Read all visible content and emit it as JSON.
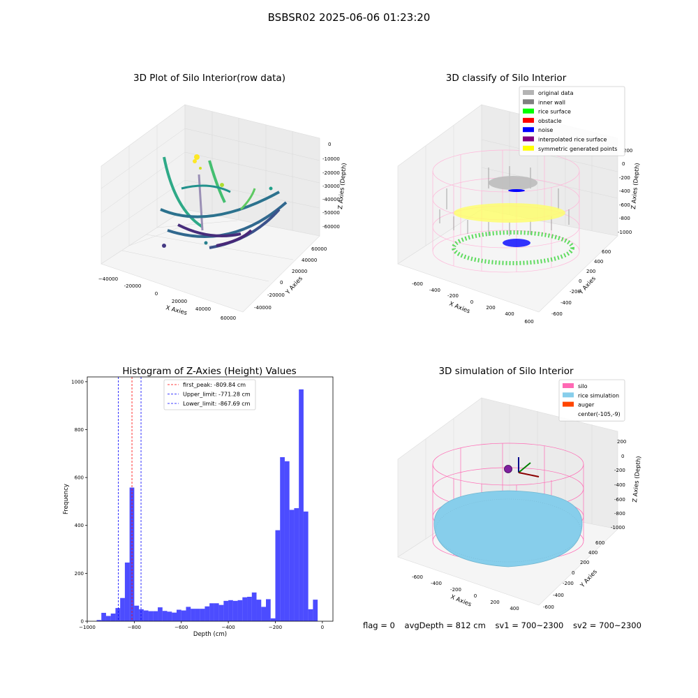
{
  "suptitle": "BSBSR02 2025-06-06 01:23:20",
  "panels": {
    "raw": {
      "title": "3D Plot of Silo Interior(row data)",
      "xlabel": "X Axies",
      "ylabel": "Y Axies",
      "zlabel": "Z Axies (Depth)",
      "xticks": [
        "-40000",
        "-20000",
        "0",
        "20000",
        "40000",
        "60000"
      ],
      "yticks": [
        "-40000",
        "-20000",
        "0",
        "20000",
        "40000",
        "60000"
      ],
      "zticks": [
        "0",
        "-10000",
        "-20000",
        "-30000",
        "-40000",
        "-50000",
        "-60000"
      ]
    },
    "classify": {
      "title": "3D classify of Silo Interior",
      "xlabel": "X Axies",
      "ylabel": "Y Axies",
      "zlabel": "Z Axies (Depth)",
      "xticks": [
        "-600",
        "-400",
        "-200",
        "0",
        "200",
        "400",
        "600"
      ],
      "yticks": [
        "-600",
        "-400",
        "-200",
        "0",
        "200",
        "400",
        "600"
      ],
      "zticks": [
        "200",
        "0",
        "-200",
        "-400",
        "-600",
        "-800",
        "-1000"
      ],
      "legend": [
        {
          "label": "original data",
          "color": "#b4b4b4"
        },
        {
          "label": "inner wall",
          "color": "#808080"
        },
        {
          "label": "rice surface",
          "color": "#00ff00"
        },
        {
          "label": "obstacle",
          "color": "#ff0000"
        },
        {
          "label": "noise",
          "color": "#0000ff"
        },
        {
          "label": "interpolated rice surface",
          "color": "#800080"
        },
        {
          "label": "symmetric generated points",
          "color": "#ffff00"
        }
      ]
    },
    "simulation": {
      "title": "3D simulation of Silo Interior",
      "xlabel": "X Axies",
      "ylabel": "Y Axies",
      "zlabel": "Z Axies (Depth)",
      "xticks": [
        "-600",
        "-400",
        "-200",
        "0",
        "200",
        "400"
      ],
      "yticks": [
        "-600",
        "-400",
        "-200",
        "0",
        "200",
        "400",
        "600"
      ],
      "zticks": [
        "200",
        "0",
        "-200",
        "-400",
        "-600",
        "-800",
        "-1000"
      ],
      "legend": [
        {
          "label": "silo",
          "color": "#ff69b4"
        },
        {
          "label": "rice simulation",
          "color": "#87ceeb"
        },
        {
          "label": "auger",
          "color": "#ff4500"
        },
        {
          "label": "center(-105,-9)",
          "color": ""
        }
      ]
    }
  },
  "status": {
    "flag": "flag = 0",
    "avg_depth": "avgDepth = 812 cm",
    "sv1": "sv1 = 700~2300",
    "sv2": "sv2 = 700~2300"
  },
  "chart_data": {
    "type": "bar",
    "title": "Histogram of Z-Axies (Height) Values",
    "xlabel": "Depth (cm)",
    "ylabel": "Frequency",
    "xlim": [
      -1000,
      45
    ],
    "ylim": [
      0,
      1020
    ],
    "xticks": [
      -1000,
      -800,
      -600,
      -400,
      -200,
      0
    ],
    "yticks": [
      0,
      200,
      400,
      600,
      800,
      1000
    ],
    "bar_color": "#0000ff",
    "bin_edges": [
      -960,
      -940,
      -920,
      -900,
      -880,
      -860,
      -840,
      -820,
      -800,
      -780,
      -760,
      -740,
      -720,
      -700,
      -680,
      -660,
      -640,
      -620,
      -600,
      -580,
      -560,
      -540,
      -520,
      -500,
      -480,
      -460,
      -440,
      -420,
      -400,
      -380,
      -360,
      -340,
      -320,
      -300,
      -280,
      -260,
      -240,
      -220,
      -200,
      -180,
      -160,
      -140,
      -120,
      -100,
      -80,
      -60,
      -40,
      -20,
      0
    ],
    "counts": [
      5,
      35,
      22,
      32,
      55,
      97,
      245,
      558,
      65,
      50,
      45,
      42,
      42,
      58,
      43,
      40,
      36,
      48,
      45,
      60,
      52,
      52,
      52,
      62,
      75,
      75,
      68,
      85,
      88,
      85,
      88,
      100,
      102,
      120,
      90,
      60,
      92,
      12,
      380,
      685,
      668,
      465,
      472,
      968,
      458,
      50,
      90,
      0
    ],
    "vlines": [
      {
        "label": "first_peak: -809.84 cm",
        "x": -809.84,
        "color": "#ff0000"
      },
      {
        "label": "Upper_limit: -771.28 cm",
        "x": -771.28,
        "color": "#0000ff"
      },
      {
        "label": "Lower_limit: -867.69 cm",
        "x": -867.69,
        "color": "#0000ff"
      }
    ],
    "legend_position": "top-center"
  }
}
